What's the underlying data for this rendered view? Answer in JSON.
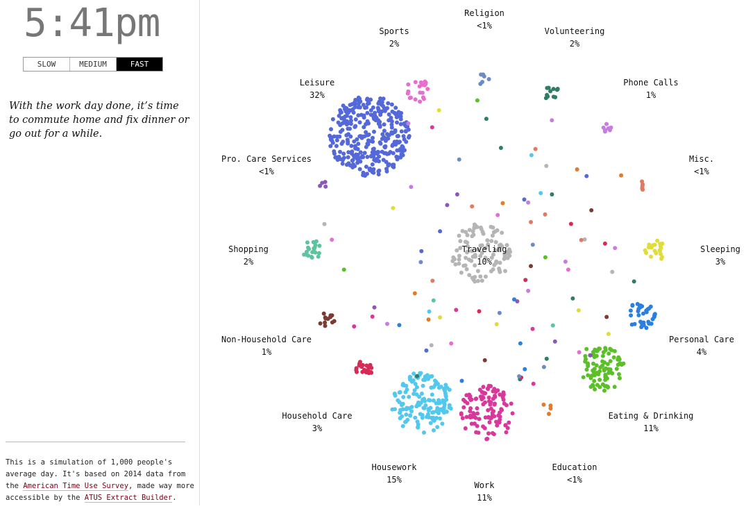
{
  "clock": {
    "time": "5:41pm"
  },
  "speed_control": {
    "buttons": [
      "SLOW",
      "MEDIUM",
      "FAST"
    ],
    "selected": "FAST"
  },
  "description": "With the work day done, it’s time to commute home and fix dinner or go out for a while.",
  "footer": {
    "text1": "This is a simulation of 1,000 people's average day. It's based on 2014 data from the ",
    "link1": "American Time Use Survey",
    "text2": ", made way more accessible by the ",
    "link2": "ATUS Extract Builder",
    "text3": "."
  },
  "activities": [
    {
      "name": "Religion",
      "pct": "<1%",
      "color": "#6b8ac7"
    },
    {
      "name": "Volunteering",
      "pct": "2%",
      "color": "#2e7d64"
    },
    {
      "name": "Phone Calls",
      "pct": "1%",
      "color": "#c77de0"
    },
    {
      "name": "Misc.",
      "pct": "<1%",
      "color": "#e07b62"
    },
    {
      "name": "Sleeping",
      "pct": "3%",
      "color": "#e0dc3a"
    },
    {
      "name": "Personal Care",
      "pct": "4%",
      "color": "#2b7fe0"
    },
    {
      "name": "Eating & Drinking",
      "pct": "11%",
      "color": "#5cbf2a"
    },
    {
      "name": "Education",
      "pct": "<1%",
      "color": "#e37a2c"
    },
    {
      "name": "Work",
      "pct": "11%",
      "color": "#d6389b"
    },
    {
      "name": "Housework",
      "pct": "15%",
      "color": "#53c8ee"
    },
    {
      "name": "Household Care",
      "pct": "3%",
      "color": "#d52b55"
    },
    {
      "name": "Non-Household Care",
      "pct": "1%",
      "color": "#7a3b33"
    },
    {
      "name": "Shopping",
      "pct": "2%",
      "color": "#5ec4a0"
    },
    {
      "name": "Pro. Care Services",
      "pct": "<1%",
      "color": "#8d56b8"
    },
    {
      "name": "Leisure",
      "pct": "32%",
      "color": "#5468d8"
    },
    {
      "name": "Sports",
      "pct": "2%",
      "color": "#e56fcc"
    },
    {
      "name": "Traveling",
      "pct": "10%",
      "color": "#b5b5b5"
    }
  ]
}
